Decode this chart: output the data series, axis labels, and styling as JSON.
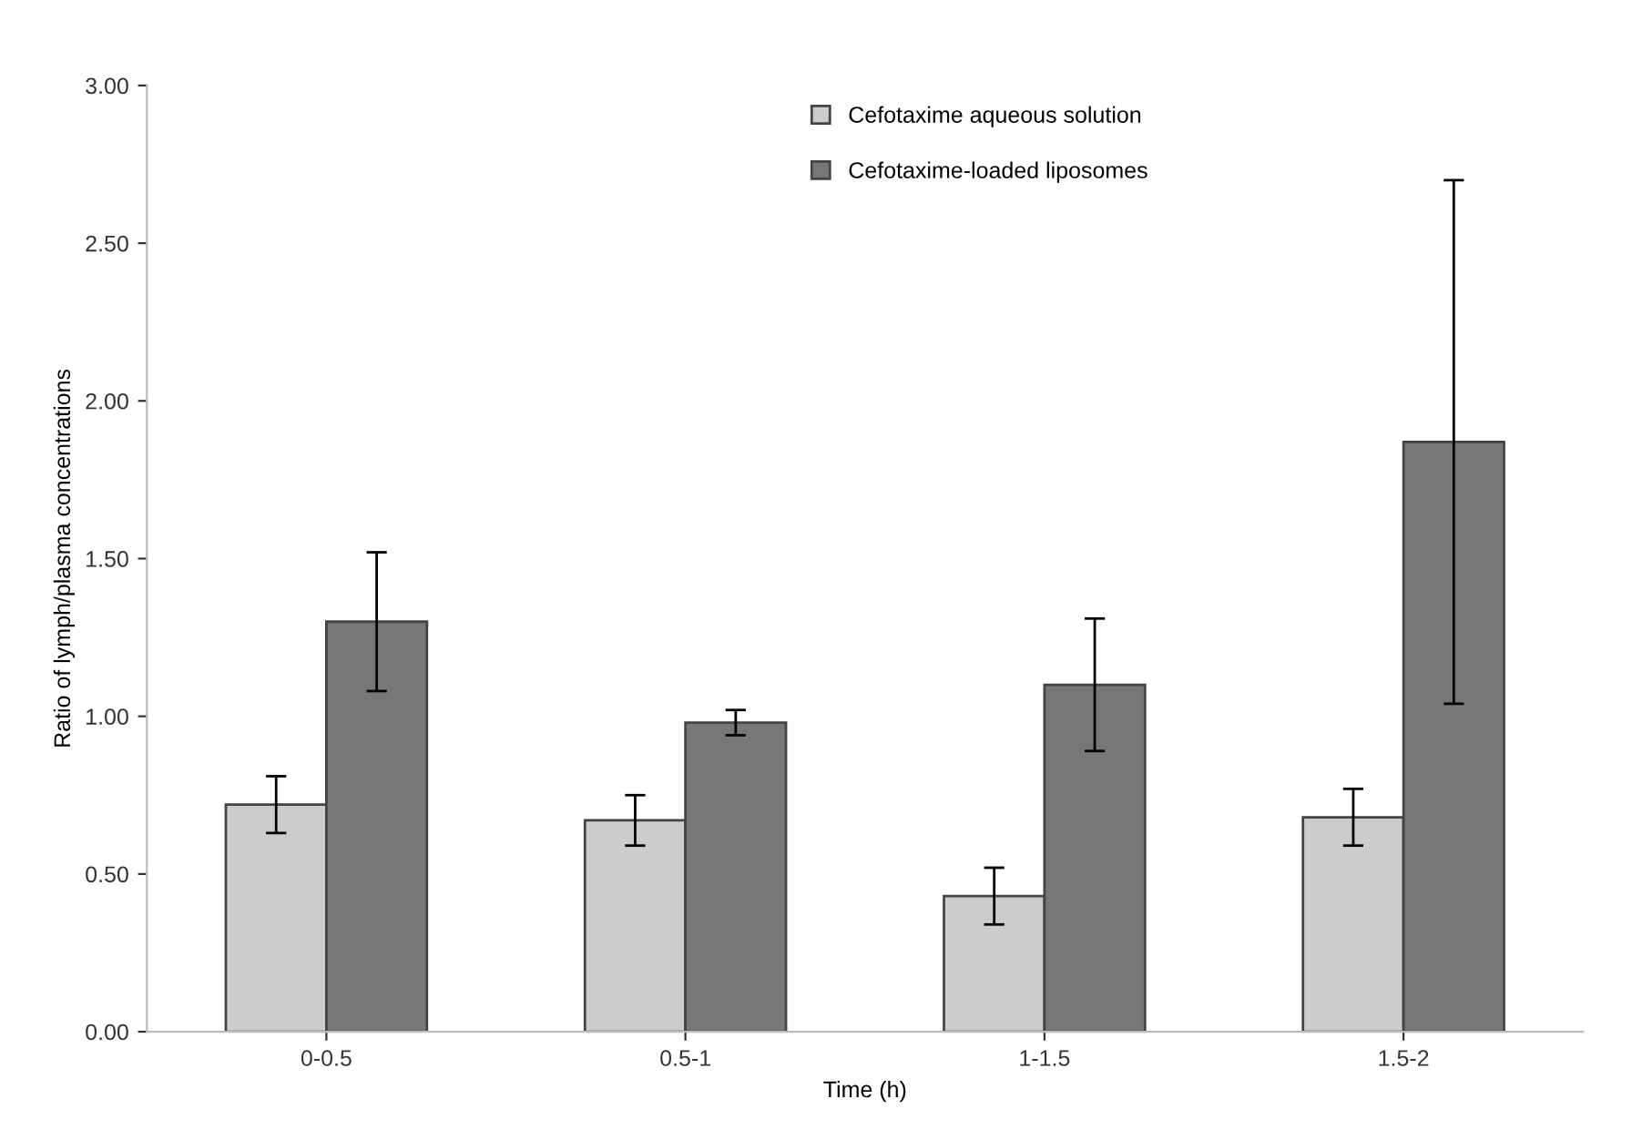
{
  "chart_data": {
    "type": "bar",
    "xlabel": "Time (h)",
    "ylabel": "Ratio of lymph/plasma concentrations",
    "categories": [
      "0-0.5",
      "0.5-1",
      "1-1.5",
      "1.5-2"
    ],
    "series": [
      {
        "name": "Cefotaxime aqueous solution",
        "color": "#cccccc",
        "values": [
          0.72,
          0.67,
          0.43,
          0.68
        ],
        "errors": [
          0.09,
          0.08,
          0.09,
          0.09
        ]
      },
      {
        "name": "Cefotaxime-loaded liposomes",
        "color": "#777777",
        "values": [
          1.3,
          0.98,
          1.1,
          1.87
        ],
        "errors": [
          0.22,
          0.04,
          0.21,
          0.83
        ]
      }
    ],
    "ylim": [
      0,
      3
    ],
    "yticks": [
      {
        "value": 0,
        "label": "0.00"
      },
      {
        "value": 0.5,
        "label": "0.50"
      },
      {
        "value": 1,
        "label": "1.00"
      },
      {
        "value": 1.5,
        "label": "1.50"
      },
      {
        "value": 2,
        "label": "2.00"
      },
      {
        "value": 2.5,
        "label": "2.50"
      },
      {
        "value": 3,
        "label": "3.00"
      }
    ],
    "legend": "top",
    "grid": false
  }
}
